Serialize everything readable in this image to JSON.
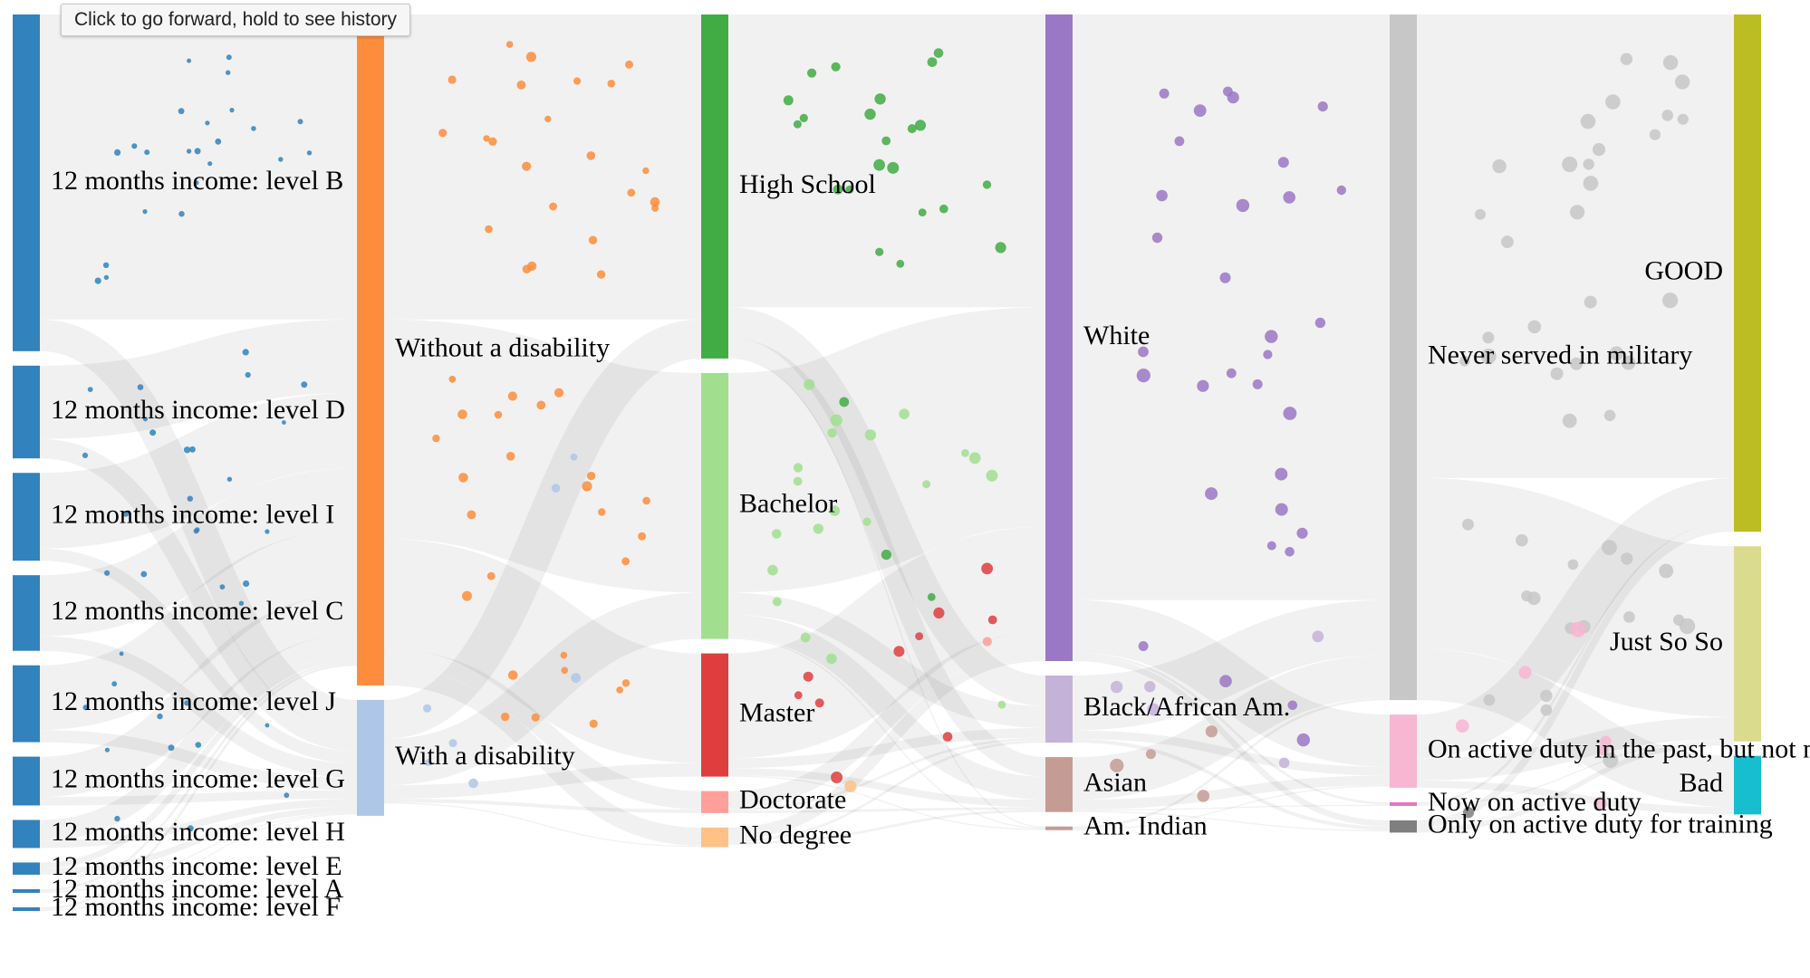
{
  "tooltip": "Click to go forward, hold to see history",
  "chart_data": {
    "type": "sankey",
    "columns": [
      {
        "name": "income",
        "nodes": [
          {
            "label": "12 months income: level B",
            "value": 27.6,
            "color": "#3182bd"
          },
          {
            "label": "12 months income: level D",
            "value": 7.6,
            "color": "#3182bd"
          },
          {
            "label": "12 months income: level I",
            "value": 7.2,
            "color": "#3182bd"
          },
          {
            "label": "12 months income: level C",
            "value": 6.2,
            "color": "#3182bd"
          },
          {
            "label": "12 months income: level J",
            "value": 6.3,
            "color": "#3182bd"
          },
          {
            "label": "12 months income: level G",
            "value": 4.0,
            "color": "#3182bd"
          },
          {
            "label": "12 months income: level H",
            "value": 2.3,
            "color": "#3182bd"
          },
          {
            "label": "12 months income: level E",
            "value": 1.0,
            "color": "#3182bd"
          },
          {
            "label": "12 months income: level A",
            "value": 0.3,
            "color": "#3182bd"
          },
          {
            "label": "12 months income: level F",
            "value": 0.3,
            "color": "#3182bd"
          }
        ]
      },
      {
        "name": "disability",
        "nodes": [
          {
            "label": "Without a disability",
            "value": 55.0,
            "color": "#fd8d3c"
          },
          {
            "label": "With a disability",
            "value": 9.5,
            "color": "#aec7e8"
          }
        ]
      },
      {
        "name": "education",
        "nodes": [
          {
            "label": "High School",
            "value": 28.2,
            "color": "#41ab44"
          },
          {
            "label": "Bachelor",
            "value": 21.8,
            "color": "#a1df8f"
          },
          {
            "label": "Master",
            "value": 10.1,
            "color": "#de3e3e"
          },
          {
            "label": "Doctorate",
            "value": 1.8,
            "color": "#ff9f9a"
          },
          {
            "label": "No degree",
            "value": 1.6,
            "color": "#ffc186"
          }
        ]
      },
      {
        "name": "race",
        "nodes": [
          {
            "label": "White",
            "value": 53.0,
            "color": "#9b77c5"
          },
          {
            "label": "Black/African Am.",
            "value": 5.5,
            "color": "#c5b2d8"
          },
          {
            "label": "Asian",
            "value": 4.5,
            "color": "#c49c94"
          },
          {
            "label": "Am. Indian",
            "value": 0.3,
            "color": "#c49c94"
          }
        ]
      },
      {
        "name": "military",
        "nodes": [
          {
            "label": "Never served in military",
            "value": 56.2,
            "color": "#c7c7c7"
          },
          {
            "label": "On active duty in the past, but not now",
            "value": 6.0,
            "color": "#f7b6d2"
          },
          {
            "label": "Now on active duty",
            "value": 0.3,
            "color": "#e377c2"
          },
          {
            "label": "Only on active duty for training",
            "value": 1.0,
            "color": "#7f7f7f"
          }
        ]
      },
      {
        "name": "rating",
        "nodes": [
          {
            "label": "GOOD",
            "value": 42.4,
            "color": "#bcbd22"
          },
          {
            "label": "Just So So",
            "value": 16.0,
            "color": "#dbdb8d"
          },
          {
            "label": "Bad",
            "value": 4.8,
            "color": "#17becf"
          }
        ]
      }
    ],
    "links": [
      {
        "source": [
          0,
          0
        ],
        "target": [
          1,
          0
        ],
        "value": 25.0
      },
      {
        "source": [
          0,
          0
        ],
        "target": [
          1,
          1
        ],
        "value": 2.6
      },
      {
        "source": [
          0,
          1
        ],
        "target": [
          1,
          0
        ],
        "value": 6.0
      },
      {
        "source": [
          0,
          1
        ],
        "target": [
          1,
          1
        ],
        "value": 1.6
      },
      {
        "source": [
          0,
          2
        ],
        "target": [
          1,
          0
        ],
        "value": 6.2
      },
      {
        "source": [
          0,
          2
        ],
        "target": [
          1,
          1
        ],
        "value": 1.0
      },
      {
        "source": [
          0,
          3
        ],
        "target": [
          1,
          0
        ],
        "value": 5.0
      },
      {
        "source": [
          0,
          3
        ],
        "target": [
          1,
          1
        ],
        "value": 1.2
      },
      {
        "source": [
          0,
          4
        ],
        "target": [
          1,
          0
        ],
        "value": 5.3
      },
      {
        "source": [
          0,
          4
        ],
        "target": [
          1,
          1
        ],
        "value": 1.0
      },
      {
        "source": [
          0,
          5
        ],
        "target": [
          1,
          0
        ],
        "value": 3.3
      },
      {
        "source": [
          0,
          5
        ],
        "target": [
          1,
          1
        ],
        "value": 0.7
      },
      {
        "source": [
          0,
          6
        ],
        "target": [
          1,
          0
        ],
        "value": 1.7
      },
      {
        "source": [
          0,
          6
        ],
        "target": [
          1,
          1
        ],
        "value": 0.6
      },
      {
        "source": [
          0,
          7
        ],
        "target": [
          1,
          0
        ],
        "value": 0.5
      },
      {
        "source": [
          0,
          7
        ],
        "target": [
          1,
          1
        ],
        "value": 0.5
      },
      {
        "source": [
          0,
          8
        ],
        "target": [
          1,
          0
        ],
        "value": 0.2
      },
      {
        "source": [
          0,
          8
        ],
        "target": [
          1,
          1
        ],
        "value": 0.1
      },
      {
        "source": [
          0,
          9
        ],
        "target": [
          1,
          0
        ],
        "value": 0.2
      },
      {
        "source": [
          0,
          9
        ],
        "target": [
          1,
          1
        ],
        "value": 0.1
      },
      {
        "source": [
          1,
          0
        ],
        "target": [
          2,
          0
        ],
        "value": 25.0
      },
      {
        "source": [
          1,
          0
        ],
        "target": [
          2,
          1
        ],
        "value": 18.0
      },
      {
        "source": [
          1,
          0
        ],
        "target": [
          2,
          2
        ],
        "value": 9.0
      },
      {
        "source": [
          1,
          0
        ],
        "target": [
          2,
          3
        ],
        "value": 1.5
      },
      {
        "source": [
          1,
          0
        ],
        "target": [
          2,
          4
        ],
        "value": 1.5
      },
      {
        "source": [
          1,
          1
        ],
        "target": [
          2,
          0
        ],
        "value": 3.2
      },
      {
        "source": [
          1,
          1
        ],
        "target": [
          2,
          1
        ],
        "value": 3.8
      },
      {
        "source": [
          1,
          1
        ],
        "target": [
          2,
          2
        ],
        "value": 1.1
      },
      {
        "source": [
          1,
          1
        ],
        "target": [
          2,
          3
        ],
        "value": 0.3
      },
      {
        "source": [
          1,
          1
        ],
        "target": [
          2,
          4
        ],
        "value": 0.1
      },
      {
        "source": [
          2,
          0
        ],
        "target": [
          3,
          0
        ],
        "value": 24.0
      },
      {
        "source": [
          2,
          0
        ],
        "target": [
          3,
          1
        ],
        "value": 2.5
      },
      {
        "source": [
          2,
          0
        ],
        "target": [
          3,
          2
        ],
        "value": 1.6
      },
      {
        "source": [
          2,
          0
        ],
        "target": [
          3,
          3
        ],
        "value": 0.1
      },
      {
        "source": [
          2,
          1
        ],
        "target": [
          3,
          0
        ],
        "value": 18.0
      },
      {
        "source": [
          2,
          1
        ],
        "target": [
          3,
          1
        ],
        "value": 1.8
      },
      {
        "source": [
          2,
          1
        ],
        "target": [
          3,
          2
        ],
        "value": 1.9
      },
      {
        "source": [
          2,
          1
        ],
        "target": [
          3,
          3
        ],
        "value": 0.1
      },
      {
        "source": [
          2,
          2
        ],
        "target": [
          3,
          0
        ],
        "value": 8.6
      },
      {
        "source": [
          2,
          2
        ],
        "target": [
          3,
          1
        ],
        "value": 0.8
      },
      {
        "source": [
          2,
          2
        ],
        "target": [
          3,
          2
        ],
        "value": 0.6
      },
      {
        "source": [
          2,
          2
        ],
        "target": [
          3,
          3
        ],
        "value": 0.1
      },
      {
        "source": [
          2,
          3
        ],
        "target": [
          3,
          0
        ],
        "value": 1.4
      },
      {
        "source": [
          2,
          3
        ],
        "target": [
          3,
          1
        ],
        "value": 0.2
      },
      {
        "source": [
          2,
          3
        ],
        "target": [
          3,
          2
        ],
        "value": 0.2
      },
      {
        "source": [
          2,
          4
        ],
        "target": [
          3,
          0
        ],
        "value": 1.0
      },
      {
        "source": [
          2,
          4
        ],
        "target": [
          3,
          1
        ],
        "value": 0.2
      },
      {
        "source": [
          2,
          4
        ],
        "target": [
          3,
          2
        ],
        "value": 0.2
      },
      {
        "source": [
          3,
          0
        ],
        "target": [
          4,
          0
        ],
        "value": 48.0
      },
      {
        "source": [
          3,
          0
        ],
        "target": [
          4,
          1
        ],
        "value": 4.3
      },
      {
        "source": [
          3,
          0
        ],
        "target": [
          4,
          2
        ],
        "value": 0.2
      },
      {
        "source": [
          3,
          0
        ],
        "target": [
          4,
          3
        ],
        "value": 0.5
      },
      {
        "source": [
          3,
          1
        ],
        "target": [
          4,
          0
        ],
        "value": 4.5
      },
      {
        "source": [
          3,
          1
        ],
        "target": [
          4,
          1
        ],
        "value": 0.7
      },
      {
        "source": [
          3,
          1
        ],
        "target": [
          4,
          3
        ],
        "value": 0.3
      },
      {
        "source": [
          3,
          2
        ],
        "target": [
          4,
          0
        ],
        "value": 3.5
      },
      {
        "source": [
          3,
          2
        ],
        "target": [
          4,
          1
        ],
        "value": 0.8
      },
      {
        "source": [
          3,
          2
        ],
        "target": [
          4,
          2
        ],
        "value": 0.1
      },
      {
        "source": [
          3,
          2
        ],
        "target": [
          4,
          3
        ],
        "value": 0.1
      },
      {
        "source": [
          3,
          3
        ],
        "target": [
          4,
          0
        ],
        "value": 0.2
      },
      {
        "source": [
          3,
          3
        ],
        "target": [
          4,
          1
        ],
        "value": 0.1
      },
      {
        "source": [
          4,
          0
        ],
        "target": [
          5,
          0
        ],
        "value": 38.0
      },
      {
        "source": [
          4,
          0
        ],
        "target": [
          5,
          1
        ],
        "value": 14.0
      },
      {
        "source": [
          4,
          0
        ],
        "target": [
          5,
          2
        ],
        "value": 4.2
      },
      {
        "source": [
          4,
          1
        ],
        "target": [
          5,
          0
        ],
        "value": 3.6
      },
      {
        "source": [
          4,
          1
        ],
        "target": [
          5,
          1
        ],
        "value": 1.8
      },
      {
        "source": [
          4,
          1
        ],
        "target": [
          5,
          2
        ],
        "value": 0.6
      },
      {
        "source": [
          4,
          2
        ],
        "target": [
          5,
          0
        ],
        "value": 0.2
      },
      {
        "source": [
          4,
          2
        ],
        "target": [
          5,
          1
        ],
        "value": 0.1
      },
      {
        "source": [
          4,
          3
        ],
        "target": [
          5,
          0
        ],
        "value": 0.6
      },
      {
        "source": [
          4,
          3
        ],
        "target": [
          5,
          1
        ],
        "value": 0.4
      }
    ]
  }
}
